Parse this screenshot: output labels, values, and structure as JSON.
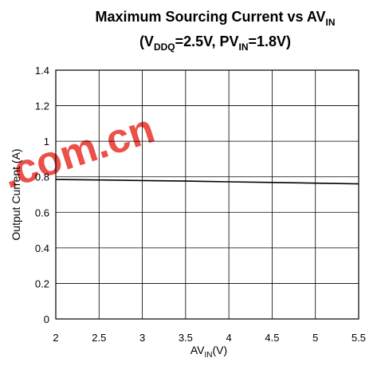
{
  "chart_data": {
    "type": "line",
    "title": {
      "line1_main": "Maximum Sourcing Current vs AV",
      "line1_sub": "IN",
      "line2_open": "(V",
      "line2_sub1": "DDQ",
      "line2_mid": "=2.5V, PV",
      "line2_sub2": "IN",
      "line2_end": "=1.8V)"
    },
    "xlabel": {
      "main": "AV",
      "sub": "IN",
      "unit": "(V)"
    },
    "ylabel": "Output Current (A)",
    "xlim": [
      2,
      5.5
    ],
    "ylim": [
      0,
      1.4
    ],
    "x_ticks": [
      "2",
      "2.5",
      "3",
      "3.5",
      "4",
      "4.5",
      "5",
      "5.5"
    ],
    "y_ticks": [
      "0",
      "0.2",
      "0.4",
      "0.6",
      "0.8",
      "1",
      "1.2",
      "1.4"
    ],
    "grid": true,
    "series": [
      {
        "x": [
          2,
          2.5,
          3,
          3.5,
          4,
          4.5,
          5,
          5.5
        ],
        "y": [
          0.785,
          0.782,
          0.779,
          0.776,
          0.772,
          0.768,
          0.764,
          0.76
        ],
        "color": "#000000"
      }
    ],
    "watermark": ".com.cn"
  }
}
